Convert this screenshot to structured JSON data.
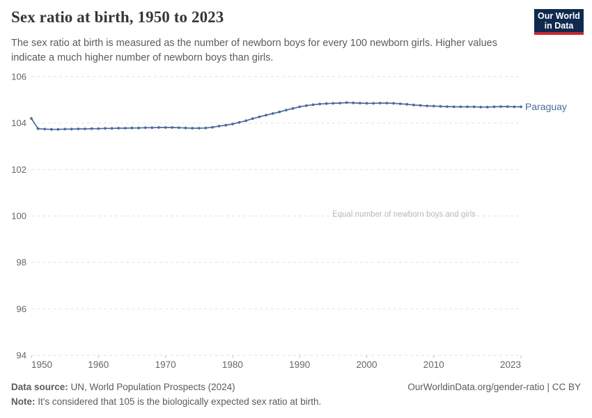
{
  "header": {
    "title": "Sex ratio at birth, 1950 to 2023",
    "subtitle": "The sex ratio at birth is measured as the number of newborn boys for every 100 newborn girls. Higher values indicate a much higher number of newborn boys than girls.",
    "logo_line1": "Our World",
    "logo_line2": "in Data"
  },
  "footer": {
    "source_label": "Data source:",
    "source_text": " UN, World Population Prospects (2024)",
    "citation": "OurWorldinData.org/gender-ratio | CC BY",
    "note_label": "Note:",
    "note_text": " It's considered that 105 is the biologically expected sex ratio at birth."
  },
  "colors": {
    "line": "#4C6A9C",
    "entity_label": "#4C6A9C",
    "grid": "#e2e2e2",
    "tick": "#c2c2c2",
    "axis_text": "#666666",
    "annotation": "#b9b9b9",
    "title": "#383636",
    "subtitle": "#5b5b5b",
    "footer": "#5b5b5b",
    "logo_bg": "#0f2a4e",
    "logo_red": "#c5282f"
  },
  "chart_data": {
    "type": "line",
    "title": "Sex ratio at birth, 1950 to 2023",
    "xlabel": "",
    "ylabel": "",
    "xlim": [
      1950,
      2023
    ],
    "ylim": [
      94,
      106
    ],
    "grid": "dashed-horizontal",
    "legend_position": "line-end-label",
    "annotation": "Equal number of newborn boys and girls",
    "annotation_y": 100,
    "yticks": [
      94,
      96,
      98,
      100,
      102,
      104,
      106
    ],
    "xticks": [
      1950,
      1960,
      1970,
      1980,
      1990,
      2000,
      2010,
      2023
    ],
    "x": [
      1950,
      1951,
      1952,
      1953,
      1954,
      1955,
      1956,
      1957,
      1958,
      1959,
      1960,
      1961,
      1962,
      1963,
      1964,
      1965,
      1966,
      1967,
      1968,
      1969,
      1970,
      1971,
      1972,
      1973,
      1974,
      1975,
      1976,
      1977,
      1978,
      1979,
      1980,
      1981,
      1982,
      1983,
      1984,
      1985,
      1986,
      1987,
      1988,
      1989,
      1990,
      1991,
      1992,
      1993,
      1994,
      1995,
      1996,
      1997,
      1998,
      1999,
      2000,
      2001,
      2002,
      2003,
      2004,
      2005,
      2006,
      2007,
      2008,
      2009,
      2010,
      2011,
      2012,
      2013,
      2014,
      2015,
      2016,
      2017,
      2018,
      2019,
      2020,
      2021,
      2022,
      2023
    ],
    "series": [
      {
        "name": "Paraguay",
        "color": "#4C6A9C",
        "values": [
          104.2,
          103.76,
          103.74,
          103.73,
          103.73,
          103.74,
          103.74,
          103.75,
          103.75,
          103.76,
          103.76,
          103.77,
          103.77,
          103.78,
          103.78,
          103.79,
          103.79,
          103.8,
          103.8,
          103.81,
          103.81,
          103.81,
          103.8,
          103.79,
          103.78,
          103.78,
          103.79,
          103.82,
          103.87,
          103.91,
          103.96,
          104.03,
          104.1,
          104.19,
          104.27,
          104.34,
          104.41,
          104.48,
          104.56,
          104.63,
          104.7,
          104.75,
          104.79,
          104.82,
          104.84,
          104.85,
          104.86,
          104.88,
          104.87,
          104.86,
          104.85,
          104.85,
          104.86,
          104.86,
          104.85,
          104.83,
          104.81,
          104.78,
          104.76,
          104.74,
          104.73,
          104.72,
          104.71,
          104.7,
          104.7,
          104.7,
          104.7,
          104.69,
          104.69,
          104.7,
          104.71,
          104.71,
          104.7,
          104.7
        ]
      }
    ]
  }
}
